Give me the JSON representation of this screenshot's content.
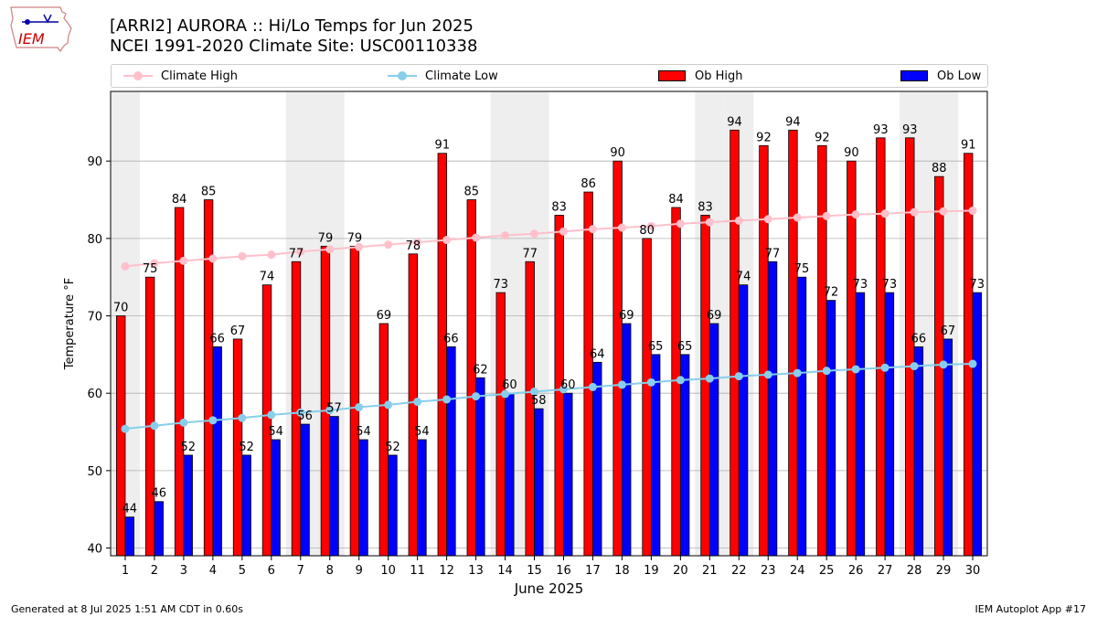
{
  "logo_text": "IEM",
  "title_line1": "[ARRI2] AURORA :: Hi/Lo Temps for Jun 2025",
  "title_line2": "NCEI 1991-2020 Climate Site: USC00110338",
  "footer_left": "Generated at 8 Jul 2025 1:51 AM CDT in 0.60s",
  "footer_right": "IEM Autoplot App #17",
  "colors": {
    "ob_high": "#ff0000",
    "ob_low": "#0000ff",
    "climate_high": "#ffc0cb",
    "climate_low": "#87ceeb",
    "weekend_band": "#eeeeee",
    "grid": "#b0b0b0"
  },
  "chart_data": {
    "type": "bar",
    "xlabel": "June 2025",
    "ylabel": "Temperature °F",
    "ylim": [
      39,
      99
    ],
    "yticks": [
      40,
      50,
      60,
      70,
      80,
      90
    ],
    "grid": "horizontal",
    "legend_position": "top",
    "categories": [
      "1",
      "2",
      "3",
      "4",
      "5",
      "6",
      "7",
      "8",
      "9",
      "10",
      "11",
      "12",
      "13",
      "14",
      "15",
      "16",
      "17",
      "18",
      "19",
      "20",
      "21",
      "22",
      "23",
      "24",
      "25",
      "26",
      "27",
      "28",
      "29",
      "30"
    ],
    "shaded_days": [
      1,
      7,
      8,
      14,
      15,
      21,
      22,
      28,
      29
    ],
    "series": [
      {
        "name": "Ob High",
        "kind": "bar",
        "values": [
          70,
          75,
          84,
          85,
          67,
          74,
          77,
          79,
          79,
          69,
          78,
          91,
          85,
          73,
          77,
          83,
          86,
          90,
          80,
          84,
          83,
          94,
          92,
          94,
          92,
          90,
          93,
          93,
          88,
          91
        ]
      },
      {
        "name": "Ob Low",
        "kind": "bar",
        "values": [
          44,
          46,
          52,
          66,
          52,
          54,
          56,
          57,
          54,
          52,
          54,
          66,
          62,
          60,
          58,
          60,
          64,
          69,
          65,
          65,
          69,
          74,
          77,
          75,
          72,
          73,
          73,
          66,
          67,
          73
        ]
      },
      {
        "name": "Climate High",
        "kind": "line",
        "values": [
          76.4,
          76.8,
          77.1,
          77.4,
          77.7,
          77.9,
          78.3,
          78.6,
          78.9,
          79.2,
          79.5,
          79.8,
          80.1,
          80.4,
          80.6,
          80.9,
          81.2,
          81.4,
          81.6,
          81.9,
          82.1,
          82.3,
          82.5,
          82.7,
          82.9,
          83.1,
          83.2,
          83.4,
          83.5,
          83.6
        ]
      },
      {
        "name": "Climate Low",
        "kind": "line",
        "values": [
          55.4,
          55.8,
          56.2,
          56.5,
          56.8,
          57.2,
          57.5,
          57.8,
          58.2,
          58.5,
          58.9,
          59.2,
          59.6,
          59.9,
          60.2,
          60.5,
          60.8,
          61.1,
          61.4,
          61.7,
          61.9,
          62.2,
          62.4,
          62.6,
          62.9,
          63.1,
          63.3,
          63.5,
          63.7,
          63.8
        ]
      }
    ]
  }
}
